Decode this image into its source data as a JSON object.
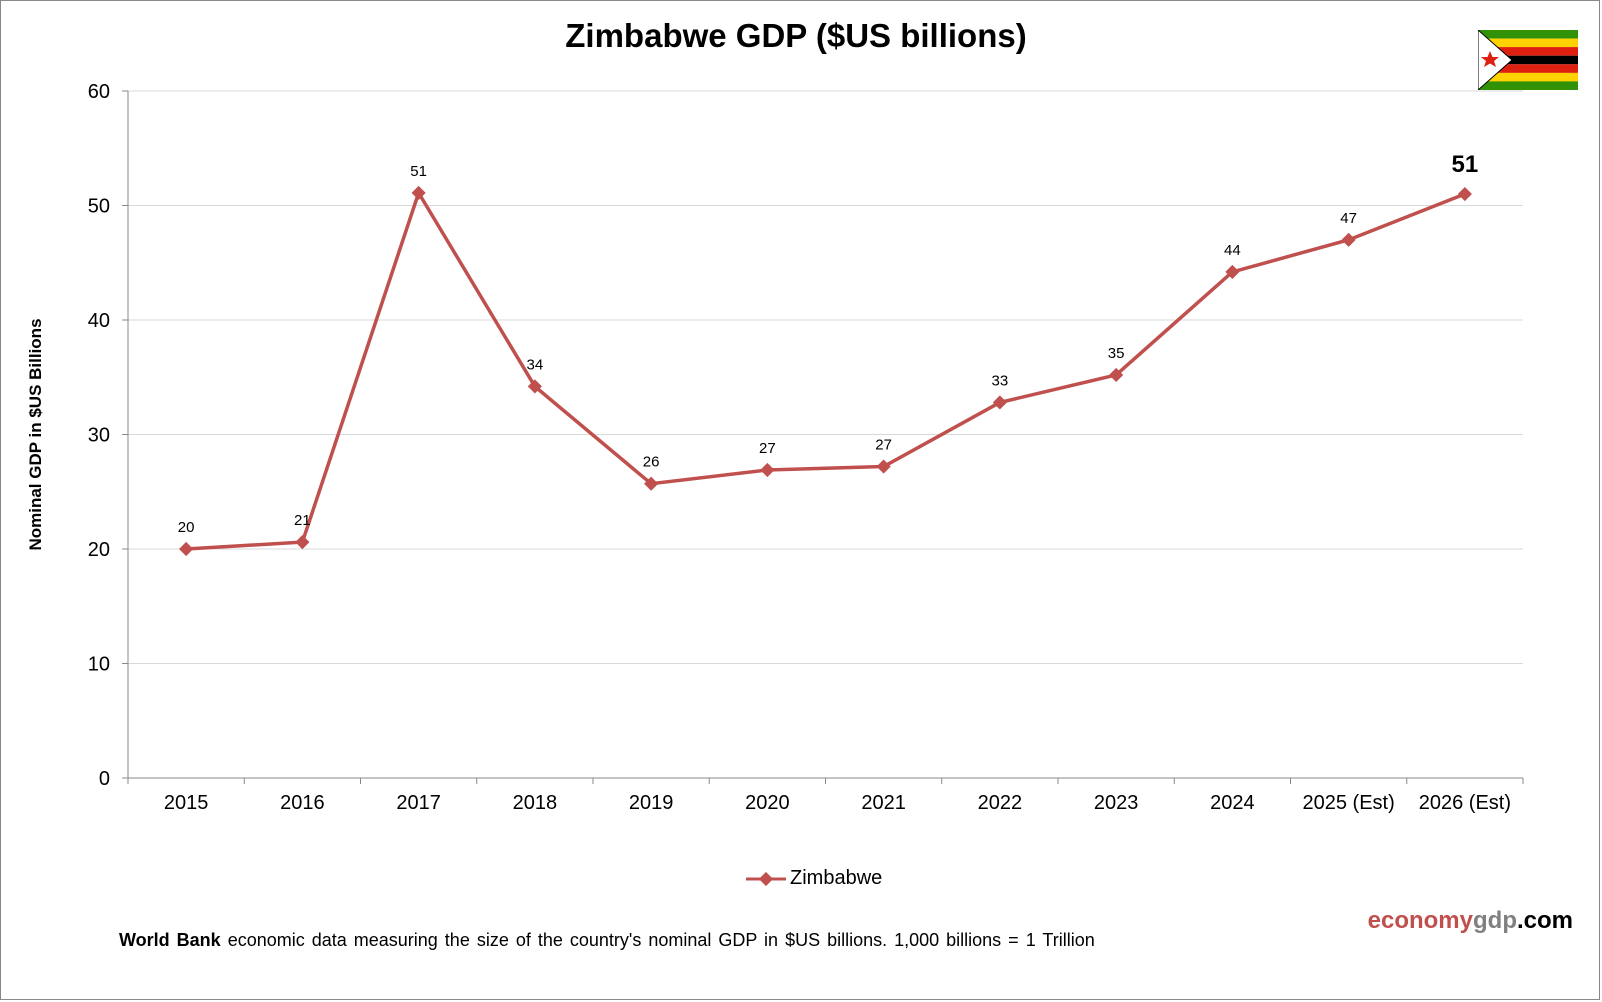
{
  "chart_data": {
    "type": "line",
    "title": "Zimbabwe GDP ($US billions)",
    "ylabel": "Nominal GDP in $US Billions",
    "xlabel": "",
    "ylim": [
      0,
      60
    ],
    "yticks": [
      0,
      10,
      20,
      30,
      40,
      50,
      60
    ],
    "grid": true,
    "legend_position": "bottom",
    "categories": [
      "2015",
      "2016",
      "2017",
      "2018",
      "2019",
      "2020",
      "2021",
      "2022",
      "2023",
      "2024",
      "2025 (Est)",
      "2026 (Est)"
    ],
    "series": [
      {
        "name": "Zimbabwe",
        "color": "#c0504d",
        "values": [
          20.0,
          20.6,
          51.1,
          34.2,
          25.7,
          26.9,
          27.2,
          32.8,
          35.2,
          44.2,
          47.0,
          51.0
        ],
        "labels": [
          "20",
          "21",
          "51",
          "34",
          "26",
          "27",
          "27",
          "33",
          "35",
          "44",
          "47",
          "51"
        ]
      }
    ]
  },
  "footer": {
    "source_bold": "World Bank",
    "text": " economic data  measuring  the size of the country's nominal  GDP in $US billions.  1,000 billions = 1 Trillion"
  },
  "brand": {
    "part1": "economy",
    "part2": "gdp",
    "part3": ".com",
    "color1": "#c0504d",
    "color2": "#808080",
    "color3": "#000000"
  },
  "flag": "zimbabwe-flag"
}
